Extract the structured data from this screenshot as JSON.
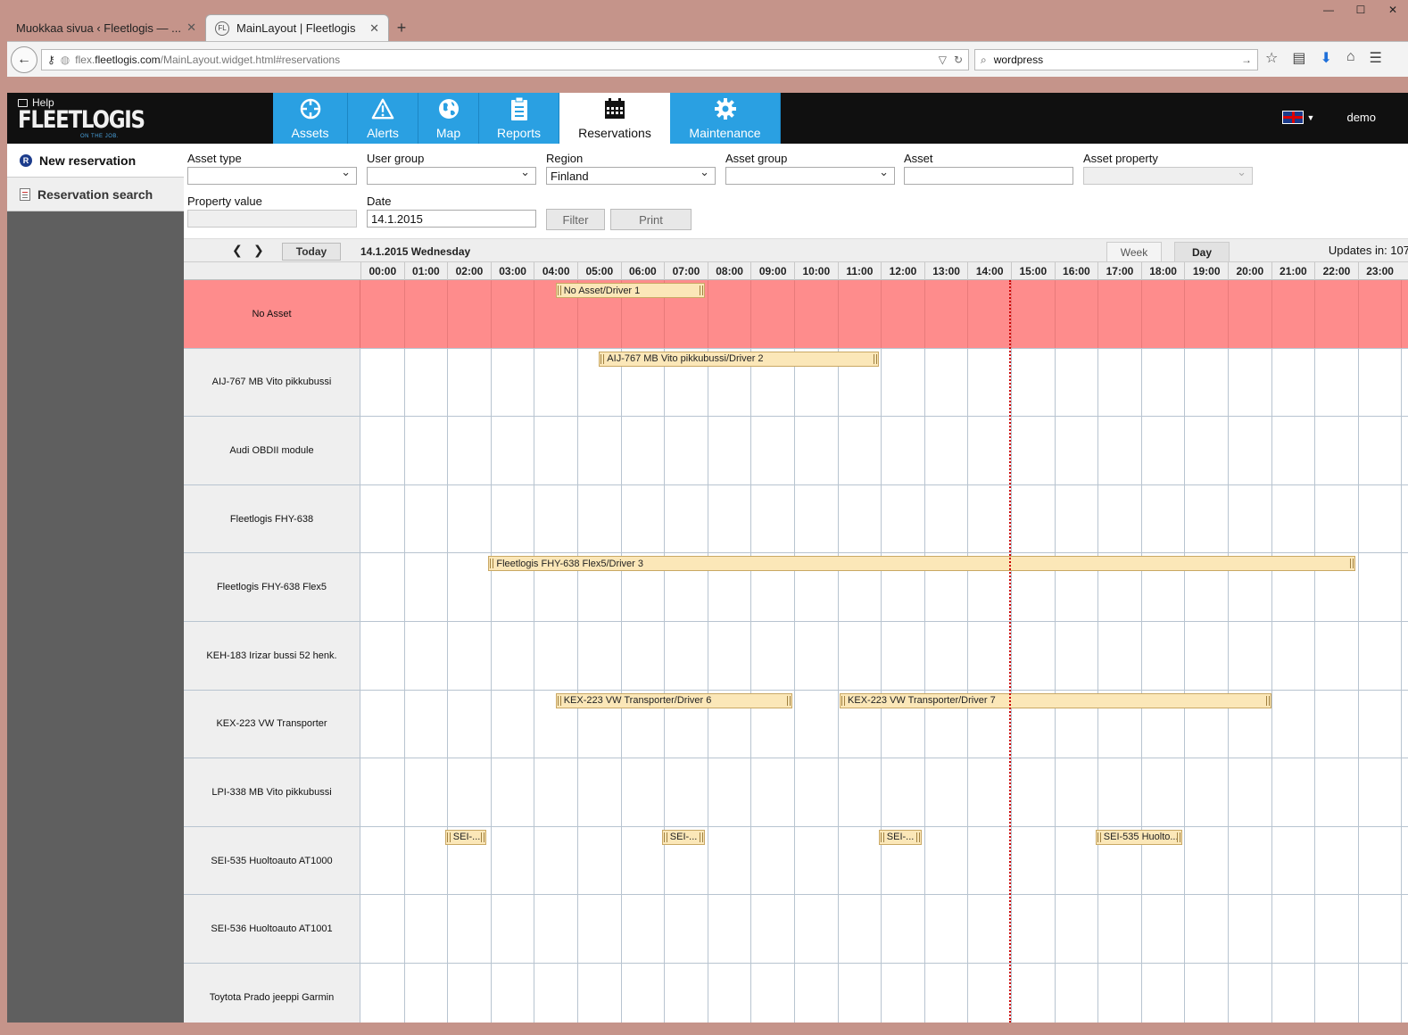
{
  "browser": {
    "tabs": [
      {
        "title": "Muokkaa sivua ‹ Fleetlogis — ...",
        "active": false
      },
      {
        "title": "MainLayout | Fleetlogis",
        "active": true
      }
    ],
    "url_domain": "flex.fleetlogis.com",
    "url_prefix": "flex.",
    "url_host": "fleetlogis.com",
    "url_path": "/MainLayout.widget.html#reservations",
    "search_value": "wordpress"
  },
  "app": {
    "help_label": "Help",
    "logo_text": "FLEETLOGIS",
    "logo_sub": "ON THE JOB.",
    "nav": [
      {
        "label": "Assets",
        "icon": "crosshair-icon",
        "active": false
      },
      {
        "label": "Alerts",
        "icon": "warning-icon",
        "active": false
      },
      {
        "label": "Map",
        "icon": "globe-icon",
        "active": false
      },
      {
        "label": "Reports",
        "icon": "clipboard-icon",
        "active": false
      },
      {
        "label": "Reservations",
        "icon": "calendar-icon",
        "active": true
      },
      {
        "label": "Maintenance",
        "icon": "gear-icon",
        "active": false
      }
    ],
    "user": "demo",
    "language_flag": "uk-flag-icon"
  },
  "sidebar": {
    "items": [
      {
        "label": "New reservation",
        "icon": "reservation-icon"
      },
      {
        "label": "Reservation search",
        "icon": "document-icon"
      }
    ]
  },
  "filters": {
    "asset_type": {
      "label": "Asset type",
      "value": ""
    },
    "user_group": {
      "label": "User group",
      "value": ""
    },
    "region": {
      "label": "Region",
      "value": "Finland"
    },
    "asset_group": {
      "label": "Asset group",
      "value": ""
    },
    "asset": {
      "label": "Asset",
      "value": ""
    },
    "asset_property": {
      "label": "Asset property",
      "value": ""
    },
    "property_value": {
      "label": "Property value",
      "value": ""
    },
    "date": {
      "label": "Date",
      "value": "14.1.2015"
    },
    "filter_label": "Filter",
    "print_label": "Print"
  },
  "calendar": {
    "today_label": "Today",
    "current_date": "14.1.2015 Wednesday",
    "week_label": "Week",
    "day_label": "Day",
    "active_view": "Day",
    "updates_text": "Updates in: 107",
    "hours": [
      "00:00",
      "01:00",
      "02:00",
      "03:00",
      "04:00",
      "05:00",
      "06:00",
      "07:00",
      "08:00",
      "09:00",
      "10:00",
      "11:00",
      "12:00",
      "13:00",
      "14:00",
      "15:00",
      "16:00",
      "17:00",
      "18:00",
      "19:00",
      "20:00",
      "21:00",
      "22:00",
      "23:00"
    ],
    "now_hour": 14.95,
    "rows": [
      {
        "name": "No Asset",
        "highlight": true,
        "events": [
          {
            "label": "No Asset/Driver 1",
            "start": 4.5,
            "end": 7.95
          }
        ]
      },
      {
        "name": "AIJ-767 MB Vito pikkubussi",
        "events": [
          {
            "label": "AIJ-767 MB Vito pikkubussi/Driver 2",
            "start": 5.5,
            "end": 11.95
          }
        ]
      },
      {
        "name": "Audi OBDII module",
        "events": []
      },
      {
        "name": "Fleetlogis FHY-638",
        "events": []
      },
      {
        "name": "Fleetlogis FHY-638 Flex5",
        "events": [
          {
            "label": "Fleetlogis FHY-638 Flex5/Driver 3",
            "start": 2.95,
            "end": 22.95
          }
        ]
      },
      {
        "name": "KEH-183 Irizar bussi 52 henk.",
        "events": []
      },
      {
        "name": "KEX-223 VW Transporter",
        "events": [
          {
            "label": "KEX-223 VW Transporter/Driver 6",
            "start": 4.5,
            "end": 9.95
          },
          {
            "label": "KEX-223 VW Transporter/Driver 7",
            "start": 11.05,
            "end": 21.0
          }
        ]
      },
      {
        "name": "LPI-338 MB Vito pikkubussi",
        "events": []
      },
      {
        "name": "SEI-535 Huoltoauto AT1000",
        "events": [
          {
            "label": "SEI-...",
            "start": 1.95,
            "end": 2.9
          },
          {
            "label": "SEI-...",
            "start": 6.95,
            "end": 7.95
          },
          {
            "label": "SEI-...",
            "start": 11.95,
            "end": 12.95
          },
          {
            "label": "SEI-535 Huolto...",
            "start": 16.95,
            "end": 18.95
          }
        ]
      },
      {
        "name": "SEI-536 Huoltoauto AT1001",
        "events": []
      },
      {
        "name": "Toytota Prado jeeppi Garmin",
        "events": []
      }
    ]
  }
}
